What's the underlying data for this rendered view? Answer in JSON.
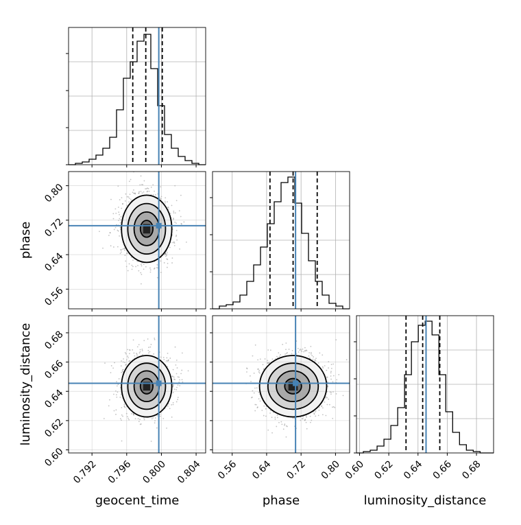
{
  "chart_data": {
    "type": "corner",
    "parameters": [
      "geocent_time",
      "phase",
      "luminosity_distance"
    ],
    "axes": {
      "geocent_time": {
        "label": "geocent_time",
        "range": [
          0.7893,
          0.8051
        ],
        "ticks": [
          0.792,
          0.796,
          0.8,
          0.804
        ],
        "tick_labels": [
          "0.792",
          "0.796",
          "0.800",
          "0.804"
        ]
      },
      "phase": {
        "label": "phase",
        "range": [
          0.5143,
          0.8328
        ],
        "ticks": [
          0.56,
          0.64,
          0.72,
          0.8
        ],
        "tick_labels": [
          "0.56",
          "0.64",
          "0.72",
          "0.80"
        ]
      },
      "luminosity_distance": {
        "label": "luminosity_distance",
        "range": [
          0.5979,
          0.6917
        ],
        "ticks": [
          0.6,
          0.62,
          0.64,
          0.66,
          0.68
        ],
        "tick_labels": [
          "0.60",
          "0.62",
          "0.64",
          "0.66",
          "0.68"
        ]
      }
    },
    "truths": {
      "geocent_time": 0.7997,
      "phase": 0.7072,
      "luminosity_distance": 0.6455
    },
    "quantiles": {
      "geocent_time": [
        0.7967,
        0.7982,
        0.8001
      ],
      "phase": [
        0.6478,
        0.7015,
        0.7575
      ],
      "luminosity_distance": [
        0.6318,
        0.6432,
        0.6549
      ]
    },
    "histograms": [
      {
        "parameter": "geocent_time",
        "bin_edges": [
          0.7893,
          0.79009,
          0.79088,
          0.79167,
          0.79246,
          0.79325,
          0.79404,
          0.79483,
          0.79562,
          0.79641,
          0.7972,
          0.79799,
          0.79878,
          0.79957,
          0.80036,
          0.80115,
          0.80194,
          0.80273,
          0.80352,
          0.80431,
          0.8051
        ],
        "counts": [
          0,
          0.01,
          0.02,
          0.04,
          0.07,
          0.12,
          0.2,
          0.4,
          0.63,
          0.75,
          0.9,
          0.95,
          0.7,
          0.43,
          0.22,
          0.12,
          0.06,
          0.03,
          0.01,
          0
        ]
      },
      {
        "parameter": "phase",
        "bin_edges": [
          0.5143,
          0.53022,
          0.54615,
          0.56207,
          0.578,
          0.59393,
          0.60985,
          0.62578,
          0.6417,
          0.65762,
          0.67355,
          0.68947,
          0.7054,
          0.72133,
          0.73725,
          0.75318,
          0.7691,
          0.78503,
          0.80095,
          0.81688,
          0.8328
        ],
        "counts": [
          0,
          0.02,
          0.03,
          0.05,
          0.1,
          0.2,
          0.32,
          0.45,
          0.62,
          0.78,
          0.92,
          0.96,
          0.77,
          0.55,
          0.35,
          0.2,
          0.1,
          0.04,
          0.02,
          0
        ]
      },
      {
        "parameter": "luminosity_distance",
        "bin_edges": [
          0.5979,
          0.6026,
          0.6073,
          0.612,
          0.6167,
          0.6214,
          0.6261,
          0.6308,
          0.6355,
          0.6402,
          0.6449,
          0.6496,
          0.6543,
          0.659,
          0.6637,
          0.6684,
          0.6731,
          0.6778,
          0.6825,
          0.6872,
          0.6917
        ],
        "counts": [
          0,
          0.01,
          0.02,
          0.05,
          0.1,
          0.2,
          0.33,
          0.57,
          0.81,
          0.93,
          0.96,
          0.86,
          0.57,
          0.3,
          0.15,
          0.06,
          0.02,
          0.01,
          0,
          0
        ]
      }
    ],
    "contour_panels": [
      {
        "x": "geocent_time",
        "y": "phase",
        "center": [
          0.7983,
          0.7
        ],
        "sigma": [
          0.00145,
          0.039
        ],
        "contour_levels_sigma": [
          0.5,
          1.0,
          1.5,
          2.0
        ]
      },
      {
        "x": "geocent_time",
        "y": "luminosity_distance",
        "center": [
          0.7983,
          0.6435
        ],
        "sigma": [
          0.00145,
          0.0105
        ],
        "contour_levels_sigma": [
          0.5,
          1.0,
          1.5,
          2.0
        ]
      },
      {
        "x": "phase",
        "y": "luminosity_distance",
        "center": [
          0.7015,
          0.6435
        ],
        "sigma": [
          0.039,
          0.0105
        ],
        "contour_levels_sigma": [
          0.5,
          1.0,
          1.5,
          2.0
        ]
      }
    ],
    "colors": {
      "truth": "#4682b4",
      "histogram": "#000000",
      "quantile": "#000000",
      "grid": "#b0b0b0",
      "density_dark": "#000000"
    },
    "grid": true
  }
}
